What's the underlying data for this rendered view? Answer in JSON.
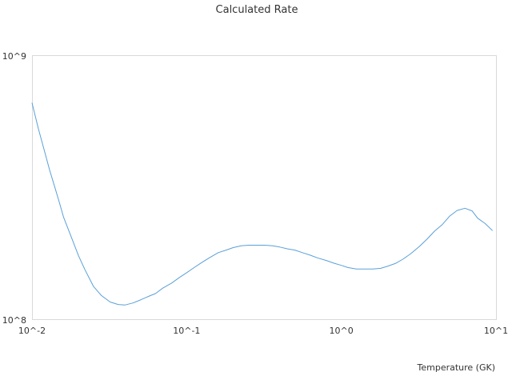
{
  "chart_data": {
    "type": "line",
    "title": "Calculated Rate",
    "xlabel": "Temperature (GK)",
    "ylabel": "",
    "x_scale": "log",
    "y_scale": "log",
    "xlim": [
      0.01,
      10
    ],
    "ylim": [
      100000000,
      1000000000
    ],
    "x_ticks": [
      {
        "value": 0.01,
        "label": "10^-2"
      },
      {
        "value": 0.1,
        "label": "10^-1"
      },
      {
        "value": 1,
        "label": "10^0"
      },
      {
        "value": 10,
        "label": "10^1"
      }
    ],
    "y_ticks": [
      {
        "value": 100000000,
        "label": "10^8"
      },
      {
        "value": 1000000000,
        "label": "10^9"
      }
    ],
    "grid": false,
    "legend": "none",
    "line_color": "#5aa0d8",
    "series": [
      {
        "x": [
          0.01,
          0.011,
          0.012,
          0.013,
          0.014,
          0.015,
          0.016,
          0.018,
          0.02,
          0.022,
          0.025,
          0.028,
          0.032,
          0.036,
          0.04,
          0.045,
          0.05,
          0.056,
          0.063,
          0.07,
          0.08,
          0.09,
          0.1,
          0.11,
          0.125,
          0.14,
          0.16,
          0.18,
          0.2,
          0.225,
          0.25,
          0.28,
          0.32,
          0.36,
          0.4,
          0.45,
          0.5,
          0.56,
          0.63,
          0.7,
          0.8,
          0.9,
          1.0,
          1.1,
          1.25,
          1.4,
          1.6,
          1.8,
          2.0,
          2.25,
          2.5,
          2.8,
          3.2,
          3.6,
          4.0,
          4.5,
          5.0,
          5.6,
          6.3,
          7.0,
          7.6,
          8.5,
          9.5
        ],
        "y": [
          665000000,
          530000000,
          440000000,
          370000000,
          320000000,
          280000000,
          245000000,
          205000000,
          175000000,
          155000000,
          134000000,
          124000000,
          117000000,
          114500000,
          114000000,
          116000000,
          119000000,
          122500000,
          126000000,
          132000000,
          138000000,
          145000000,
          151000000,
          157000000,
          165000000,
          172000000,
          180000000,
          184000000,
          188000000,
          191000000,
          192000000,
          192000000,
          192000000,
          191000000,
          189000000,
          186000000,
          184000000,
          180000000,
          176000000,
          172000000,
          168000000,
          164000000,
          161000000,
          158000000,
          156000000,
          156000000,
          156000000,
          157000000,
          160000000,
          164000000,
          170000000,
          178000000,
          190000000,
          203000000,
          217000000,
          230000000,
          247000000,
          260000000,
          265000000,
          259000000,
          243000000,
          232000000,
          218000000
        ]
      }
    ]
  }
}
